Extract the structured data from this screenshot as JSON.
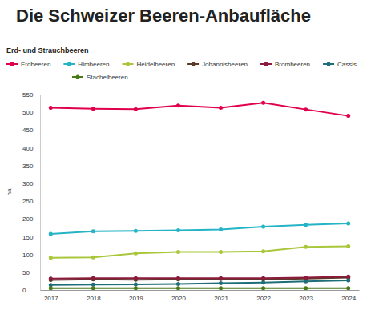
{
  "chart_data": {
    "type": "line",
    "title": "Die Schweizer Beeren-Anbaufläche",
    "subtitle": "Erd- und Strauchbeeren",
    "y_label": "ha",
    "categories": [
      "2017",
      "2018",
      "2019",
      "2020",
      "2021",
      "2022",
      "2023",
      "2024"
    ],
    "series": [
      {
        "name": "Erdbeeren",
        "color": "#e0004d",
        "values": [
          513,
          510,
          509,
          519,
          513,
          527,
          508,
          490
        ]
      },
      {
        "name": "Himbeeren",
        "color": "#24b4c6",
        "values": [
          158,
          165,
          166,
          168,
          170,
          178,
          183,
          187
        ]
      },
      {
        "name": "Heidelbeeren",
        "color": "#a9c73a",
        "values": [
          91,
          92,
          103,
          107,
          107,
          109,
          121,
          123
        ]
      },
      {
        "name": "Johannisbeeren",
        "color": "#5b3a28",
        "values": [
          28,
          30,
          29,
          30,
          31,
          30,
          32,
          35
        ]
      },
      {
        "name": "Brombeeren",
        "color": "#8c1a3c",
        "values": [
          32,
          33,
          33,
          33,
          33,
          33,
          35,
          38
        ]
      },
      {
        "name": "Cassis",
        "color": "#1e6e7a",
        "values": [
          14,
          15,
          16,
          17,
          19,
          21,
          24,
          27
        ]
      },
      {
        "name": "Stachelbeeren",
        "color": "#4a7a18",
        "values": [
          5,
          5,
          5,
          5,
          5,
          5,
          5,
          5
        ]
      }
    ],
    "ylim": [
      0,
      550
    ],
    "yticks": [
      0,
      50,
      100,
      150,
      200,
      250,
      300,
      350,
      400,
      450,
      500,
      550
    ],
    "grid": false,
    "marker": "circle",
    "legend": "top-left"
  }
}
